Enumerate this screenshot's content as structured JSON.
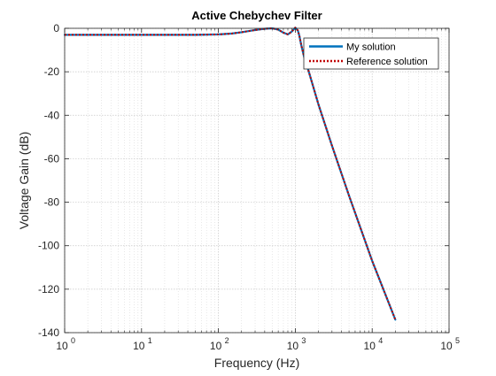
{
  "chart_data": {
    "type": "line",
    "title": "Active Chebychev Filter",
    "xlabel": "Frequency (Hz)",
    "ylabel": "Voltage Gain (dB)",
    "xscale": "log",
    "xlim": [
      1,
      100000
    ],
    "ylim": [
      -140,
      0
    ],
    "grid": true,
    "minor_grid": true,
    "legend_position": "top-right",
    "x_tick_labels": [
      {
        "base": "10",
        "exp": "0"
      },
      {
        "base": "10",
        "exp": "1"
      },
      {
        "base": "10",
        "exp": "2"
      },
      {
        "base": "10",
        "exp": "3"
      },
      {
        "base": "10",
        "exp": "4"
      },
      {
        "base": "10",
        "exp": "5"
      }
    ],
    "x_ticks": [
      1,
      10,
      100,
      1000,
      10000,
      100000
    ],
    "y_ticks": [
      0,
      -20,
      -40,
      -60,
      -80,
      -100,
      -120,
      -140
    ],
    "series": [
      {
        "name": "My solution",
        "color": "#0072BD",
        "style": "solid",
        "x": [
          1,
          10,
          50,
          100,
          150,
          200,
          300,
          400,
          500,
          600,
          700,
          800,
          900,
          1000,
          1080,
          1130,
          1200,
          1300,
          1500,
          2000,
          3000,
          5000,
          10000,
          20000
        ],
        "y": [
          -3.0,
          -3.0,
          -3.0,
          -2.8,
          -2.4,
          -1.8,
          -0.8,
          -0.2,
          0.0,
          -0.6,
          -2.0,
          -2.8,
          -1.5,
          0.3,
          -1.0,
          -3.5,
          -8.0,
          -13.0,
          -20.0,
          -35.0,
          -54.0,
          -77.0,
          -107.0,
          -134.0
        ]
      },
      {
        "name": "Reference solution",
        "color": "#C00000",
        "style": "dotted",
        "x": [
          1,
          10,
          50,
          100,
          150,
          200,
          300,
          400,
          500,
          600,
          700,
          800,
          900,
          1000,
          1080,
          1130,
          1200,
          1300,
          1500,
          2000,
          3000,
          5000,
          10000,
          20000
        ],
        "y": [
          -3.0,
          -3.0,
          -3.0,
          -2.8,
          -2.4,
          -1.8,
          -0.8,
          -0.2,
          0.0,
          -0.6,
          -2.0,
          -2.8,
          -1.5,
          0.3,
          -1.0,
          -3.5,
          -8.0,
          -13.0,
          -20.0,
          -35.0,
          -54.0,
          -77.0,
          -107.0,
          -134.0
        ]
      }
    ]
  }
}
